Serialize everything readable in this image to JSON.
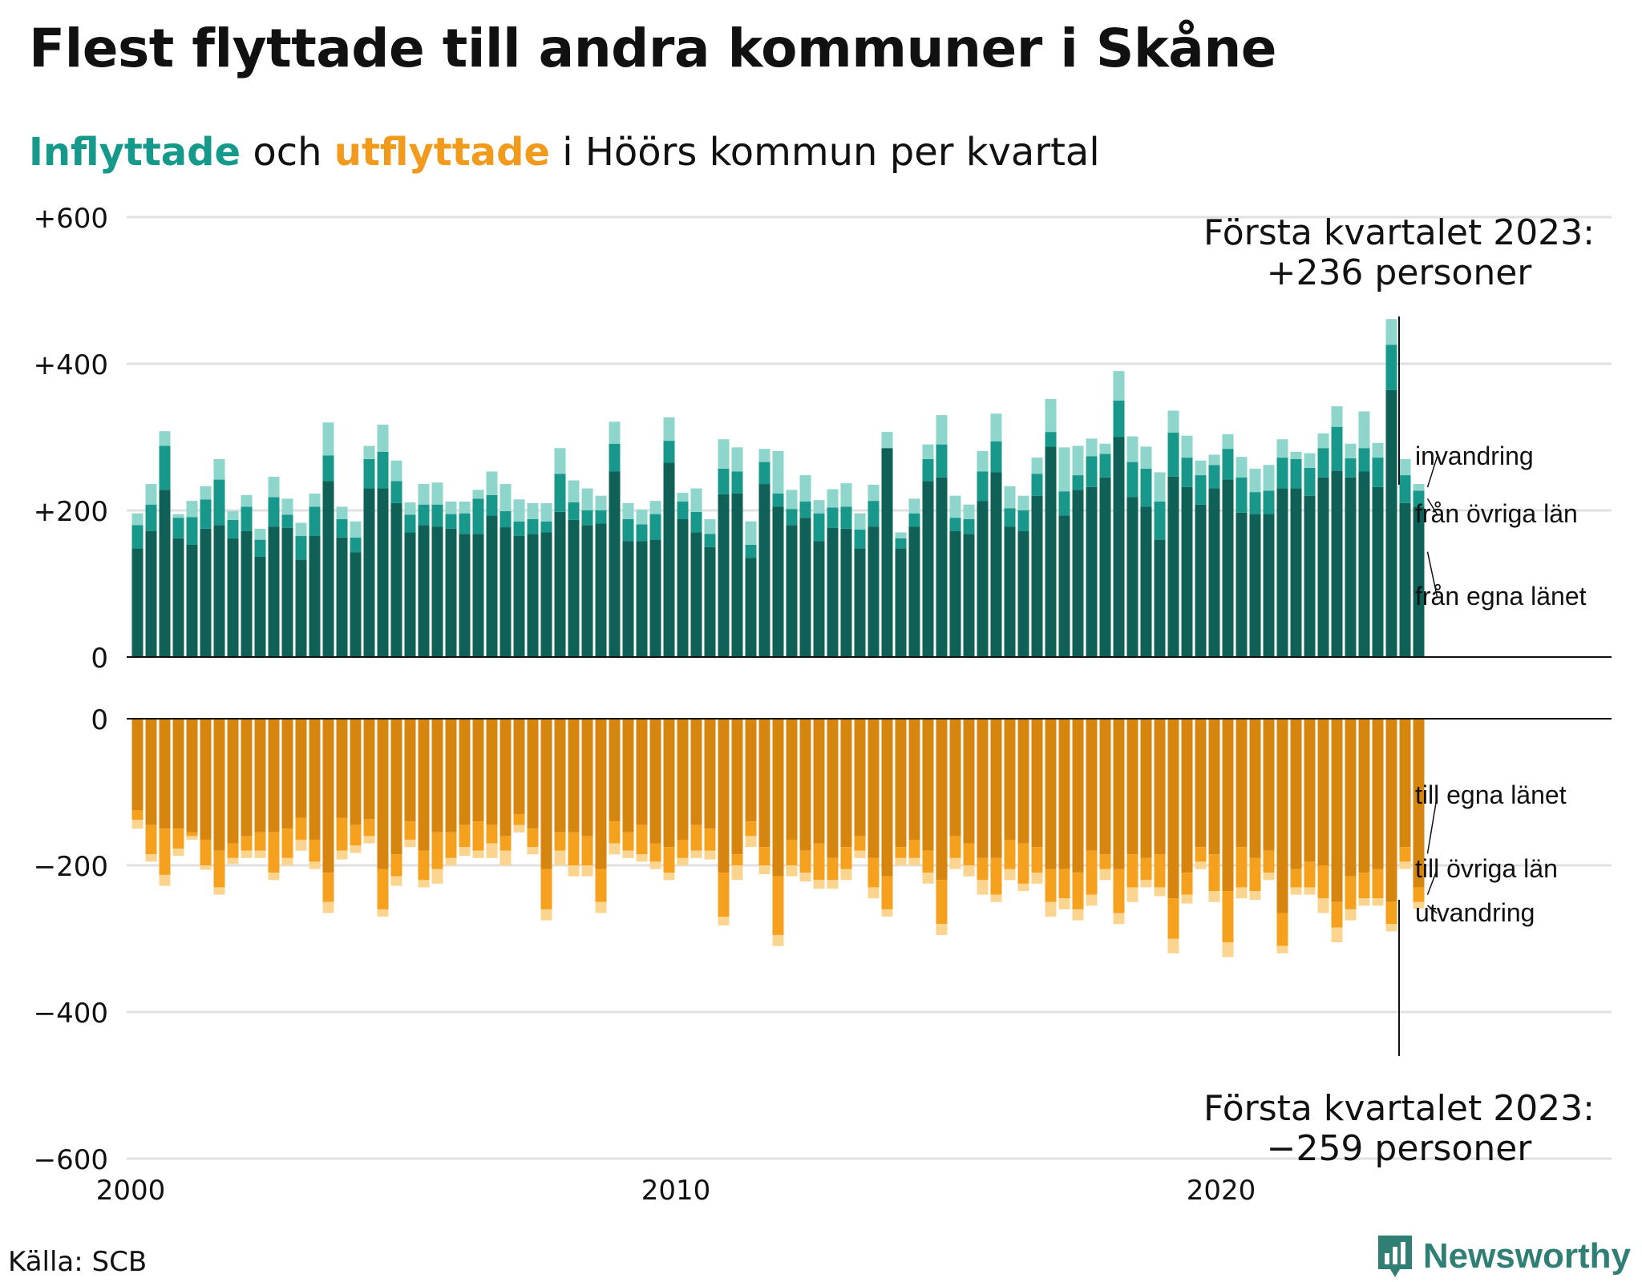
{
  "title": "Flest flyttade till andra kommuner i Skåne",
  "subtitle": {
    "part1": "Inflyttade",
    "part2": " och ",
    "part3": "utflyttade",
    "part4": " i Höörs kommun per kvartal"
  },
  "source": "Källa: SCB",
  "brand": "Newsworthy",
  "colors": {
    "in_egna": "#0f6157",
    "in_ovriga": "#17988a",
    "in_invandring": "#8ed6cc",
    "out_egna": "#d6850f",
    "out_ovriga": "#f6a11e",
    "out_utvandring": "#fbd48f",
    "grid": "#e0e0e0",
    "brand": "#2f7f74"
  },
  "annotations": {
    "top_line1": "Första kvartalet 2023:",
    "top_line2": "+236 personer",
    "bottom_line1": "Första kvartalet 2023:",
    "bottom_line2": "−259 personer"
  },
  "chart_data": {
    "type": "bar",
    "stacked": true,
    "x_start": "2000-Q1",
    "x_end": "2023-Q1",
    "x_tick_labels": [
      "2000",
      "2010",
      "2020"
    ],
    "y_tick_labels": [
      "+600",
      "+400",
      "+200",
      "0",
      "0",
      "−200",
      "−400",
      "−600"
    ],
    "panels": [
      {
        "name": "inflyttade",
        "ylim": [
          0,
          600
        ],
        "series_labels": [
          "invandring",
          "från övriga län",
          "från egna länet"
        ]
      },
      {
        "name": "utflyttade",
        "ylim": [
          -600,
          0
        ],
        "series_labels": [
          "till egna länet",
          "till övriga län",
          "utvandring"
        ]
      }
    ],
    "inflyttade": {
      "fran_egna_lanet": [
        148,
        172,
        228,
        162,
        153,
        175,
        180,
        162,
        172,
        137,
        178,
        176,
        133,
        165,
        240,
        163,
        143,
        230,
        230,
        210,
        170,
        180,
        178,
        175,
        168,
        168,
        193,
        177,
        165,
        168,
        170,
        198,
        187,
        180,
        182,
        253,
        158,
        158,
        160,
        265,
        188,
        170,
        150,
        222,
        223,
        135,
        236,
        205,
        180,
        190,
        158,
        176,
        175,
        148,
        178,
        285,
        148,
        178,
        240,
        245,
        172,
        168,
        213,
        252,
        178,
        172,
        220,
        287,
        193,
        228,
        232,
        245,
        300,
        218,
        205,
        160,
        246,
        232,
        208,
        230,
        242,
        197,
        195,
        195,
        230,
        230,
        220,
        245,
        254,
        245,
        253,
        232,
        364,
        210,
        205
      ],
      "fran_ovriga_lan": [
        32,
        36,
        60,
        28,
        38,
        40,
        62,
        25,
        33,
        23,
        40,
        18,
        32,
        40,
        35,
        25,
        20,
        40,
        50,
        30,
        24,
        28,
        30,
        20,
        28,
        48,
        28,
        22,
        20,
        20,
        15,
        52,
        24,
        20,
        18,
        38,
        30,
        23,
        35,
        30,
        24,
        28,
        18,
        35,
        30,
        18,
        30,
        18,
        22,
        22,
        38,
        28,
        30,
        26,
        35,
        0,
        14,
        18,
        30,
        45,
        18,
        20,
        40,
        42,
        25,
        28,
        30,
        20,
        33,
        20,
        42,
        32,
        50,
        48,
        52,
        52,
        60,
        40,
        40,
        32,
        42,
        48,
        30,
        32,
        42,
        40,
        38,
        40,
        60,
        26,
        32,
        40,
        62,
        38,
        22
      ],
      "invandring": [
        16,
        28,
        20,
        5,
        22,
        18,
        28,
        12,
        16,
        15,
        28,
        22,
        18,
        18,
        45,
        17,
        22,
        18,
        37,
        28,
        17,
        28,
        30,
        17,
        16,
        12,
        32,
        37,
        30,
        22,
        25,
        35,
        30,
        30,
        20,
        30,
        22,
        20,
        18,
        32,
        12,
        32,
        20,
        40,
        33,
        32,
        18,
        58,
        26,
        36,
        18,
        25,
        32,
        22,
        22,
        22,
        8,
        20,
        20,
        40,
        30,
        20,
        28,
        38,
        30,
        20,
        22,
        45,
        60,
        40,
        24,
        14,
        40,
        35,
        30,
        40,
        30,
        30,
        20,
        14,
        20,
        28,
        32,
        35,
        25,
        10,
        20,
        20,
        28,
        20,
        50,
        20,
        35,
        22,
        9
      ]
    },
    "utflyttade": {
      "till_egna_lanet": [
        -125,
        -145,
        -150,
        -150,
        -155,
        -165,
        -180,
        -170,
        -160,
        -155,
        -155,
        -150,
        -135,
        -165,
        -210,
        -135,
        -145,
        -137,
        -205,
        -185,
        -140,
        -180,
        -155,
        -155,
        -145,
        -140,
        -145,
        -160,
        -130,
        -150,
        -205,
        -155,
        -155,
        -160,
        -205,
        -140,
        -155,
        -145,
        -170,
        -175,
        -165,
        -145,
        -150,
        -210,
        -185,
        -140,
        -175,
        -215,
        -165,
        -180,
        -170,
        -190,
        -175,
        -160,
        -190,
        -215,
        -175,
        -165,
        -180,
        -220,
        -160,
        -170,
        -190,
        -190,
        -165,
        -170,
        -175,
        -205,
        -205,
        -210,
        -180,
        -185,
        -205,
        -185,
        -190,
        -185,
        -245,
        -210,
        -175,
        -185,
        -235,
        -175,
        -190,
        -180,
        -265,
        -205,
        -195,
        -200,
        -250,
        -215,
        -210,
        -205,
        -250,
        -175,
        -230
      ],
      "till_ovriga_lan": [
        -13,
        -40,
        -63,
        -27,
        -5,
        -35,
        -50,
        -20,
        -20,
        -25,
        -55,
        -40,
        -30,
        -30,
        -40,
        -45,
        -28,
        -23,
        -55,
        -30,
        -25,
        -40,
        -50,
        -35,
        -30,
        -40,
        -25,
        -20,
        -15,
        -25,
        -55,
        -25,
        -45,
        -40,
        -45,
        -30,
        -25,
        -40,
        -25,
        -35,
        -25,
        -35,
        -30,
        -60,
        -15,
        -20,
        -25,
        -80,
        -35,
        -30,
        -50,
        -30,
        -30,
        -20,
        -40,
        -45,
        -15,
        -25,
        -30,
        -60,
        -30,
        -30,
        -30,
        -50,
        -40,
        -55,
        -35,
        -45,
        -40,
        -50,
        -60,
        -20,
        -60,
        -45,
        -30,
        -45,
        -55,
        -30,
        -20,
        -50,
        -70,
        -55,
        -45,
        -30,
        -45,
        -25,
        -35,
        -45,
        -35,
        -45,
        -35,
        -40,
        -30,
        -20,
        -20
      ],
      "utvandring": [
        -12,
        -10,
        -15,
        -10,
        -5,
        -6,
        -10,
        -8,
        -10,
        -10,
        -10,
        -10,
        -15,
        -10,
        -15,
        -12,
        -10,
        -10,
        -10,
        -13,
        -10,
        -10,
        -20,
        -10,
        -12,
        -10,
        -20,
        -20,
        -10,
        -10,
        -15,
        -20,
        -15,
        -15,
        -15,
        -15,
        -10,
        -10,
        -10,
        -10,
        -10,
        -10,
        -12,
        -12,
        -20,
        -15,
        -12,
        -15,
        -15,
        -12,
        -12,
        -12,
        -15,
        -10,
        -15,
        -10,
        -10,
        -10,
        -15,
        -15,
        -15,
        -15,
        -20,
        -10,
        -15,
        -10,
        -15,
        -20,
        -15,
        -15,
        -15,
        -15,
        -15,
        -20,
        -10,
        -12,
        -20,
        -12,
        -10,
        -15,
        -20,
        -15,
        -12,
        -10,
        -10,
        -10,
        -10,
        -20,
        -20,
        -15,
        -10,
        -10,
        -10,
        -10,
        -9
      ]
    }
  }
}
